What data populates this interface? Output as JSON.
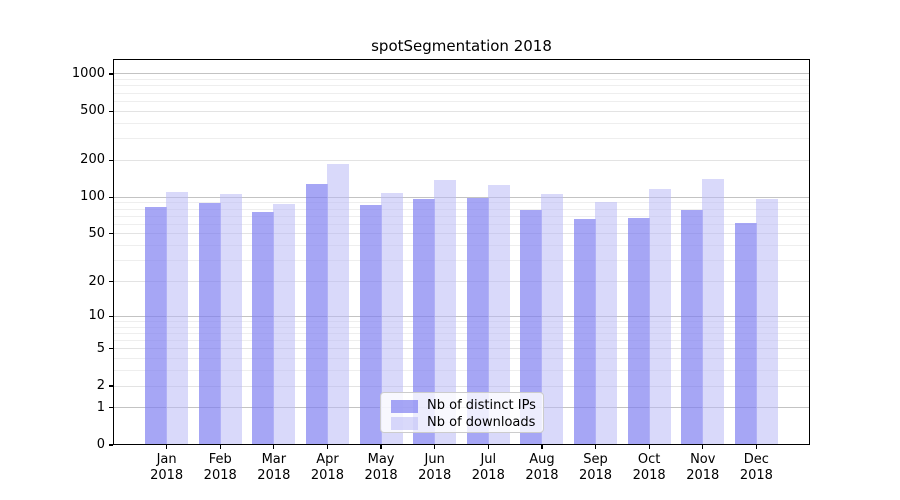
{
  "chart_data": {
    "type": "bar",
    "title": "spotSegmentation 2018",
    "categories": [
      "Jan",
      "Feb",
      "Mar",
      "Apr",
      "May",
      "Jun",
      "Jul",
      "Aug",
      "Sep",
      "Oct",
      "Nov",
      "Dec"
    ],
    "category_year": "2018",
    "series": [
      {
        "name": "Nb of distinct IPs",
        "color": "#7c7cf0",
        "opacity": 0.68,
        "values": [
          83,
          89,
          76,
          127,
          86,
          96,
          99,
          79,
          66,
          68,
          78,
          62
        ]
      },
      {
        "name": "Nb of downloads",
        "color": "#b9b9f5",
        "opacity": 0.55,
        "values": [
          111,
          106,
          88,
          185,
          109,
          138,
          126,
          107,
          92,
          117,
          141,
          97
        ]
      }
    ],
    "xlabel": "",
    "ylabel": "",
    "yscale": "log1p",
    "ylim": [
      0,
      1320
    ],
    "yticks": [
      0,
      1,
      2,
      5,
      10,
      20,
      50,
      100,
      200,
      500,
      1000
    ],
    "grid": {
      "on": true,
      "decade_lines": [
        1,
        10,
        100,
        1000
      ],
      "sub_lines": [
        2,
        5,
        20,
        50,
        200,
        500
      ],
      "minor_lines": [
        3,
        4,
        6,
        7,
        8,
        9,
        30,
        40,
        60,
        70,
        80,
        90,
        300,
        400,
        600,
        700,
        800,
        900
      ]
    },
    "legend_position": "lower center"
  },
  "colors": {
    "background": "#ffffff",
    "spine": "#000000",
    "grid_decade": "#c3c3c3",
    "grid_sub": "#e3e3e3",
    "grid_minor": "#eeeeee",
    "legend_border": "#cccccc",
    "text": "#000000"
  }
}
